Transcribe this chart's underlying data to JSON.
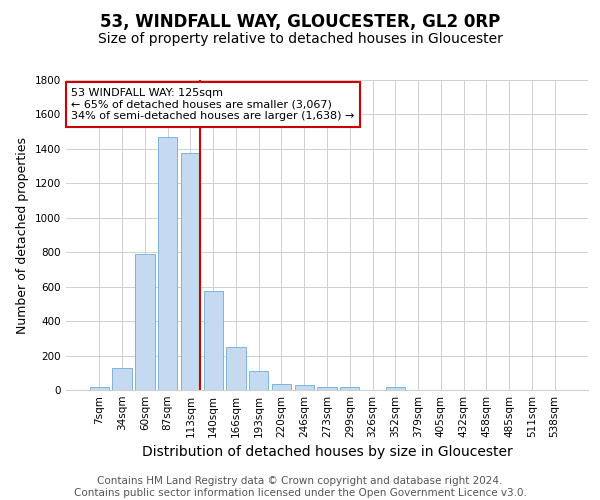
{
  "title": "53, WINDFALL WAY, GLOUCESTER, GL2 0RP",
  "subtitle": "Size of property relative to detached houses in Gloucester",
  "xlabel": "Distribution of detached houses by size in Gloucester",
  "ylabel": "Number of detached properties",
  "categories": [
    "7sqm",
    "34sqm",
    "60sqm",
    "87sqm",
    "113sqm",
    "140sqm",
    "166sqm",
    "193sqm",
    "220sqm",
    "246sqm",
    "273sqm",
    "299sqm",
    "326sqm",
    "352sqm",
    "379sqm",
    "405sqm",
    "432sqm",
    "458sqm",
    "485sqm",
    "511sqm",
    "538sqm"
  ],
  "values": [
    15,
    130,
    790,
    1470,
    1375,
    575,
    250,
    110,
    35,
    30,
    20,
    15,
    0,
    20,
    0,
    0,
    0,
    0,
    0,
    0,
    0
  ],
  "bar_color": "#c5d9f0",
  "bar_edge_color": "#6baed6",
  "vline_x": 4.44,
  "vline_color": "#cc0000",
  "annotation_text": "53 WINDFALL WAY: 125sqm\n← 65% of detached houses are smaller (3,067)\n34% of semi-detached houses are larger (1,638) →",
  "annotation_box_color": "#cc0000",
  "annotation_text_color": "#000000",
  "ylim": [
    0,
    1800
  ],
  "yticks": [
    0,
    200,
    400,
    600,
    800,
    1000,
    1200,
    1400,
    1600,
    1800
  ],
  "grid_color": "#d0d0d0",
  "background_color": "#ffffff",
  "footer_line1": "Contains HM Land Registry data © Crown copyright and database right 2024.",
  "footer_line2": "Contains public sector information licensed under the Open Government Licence v3.0.",
  "title_fontsize": 12,
  "subtitle_fontsize": 10,
  "xlabel_fontsize": 10,
  "ylabel_fontsize": 9,
  "tick_fontsize": 7.5,
  "footer_fontsize": 7.5
}
